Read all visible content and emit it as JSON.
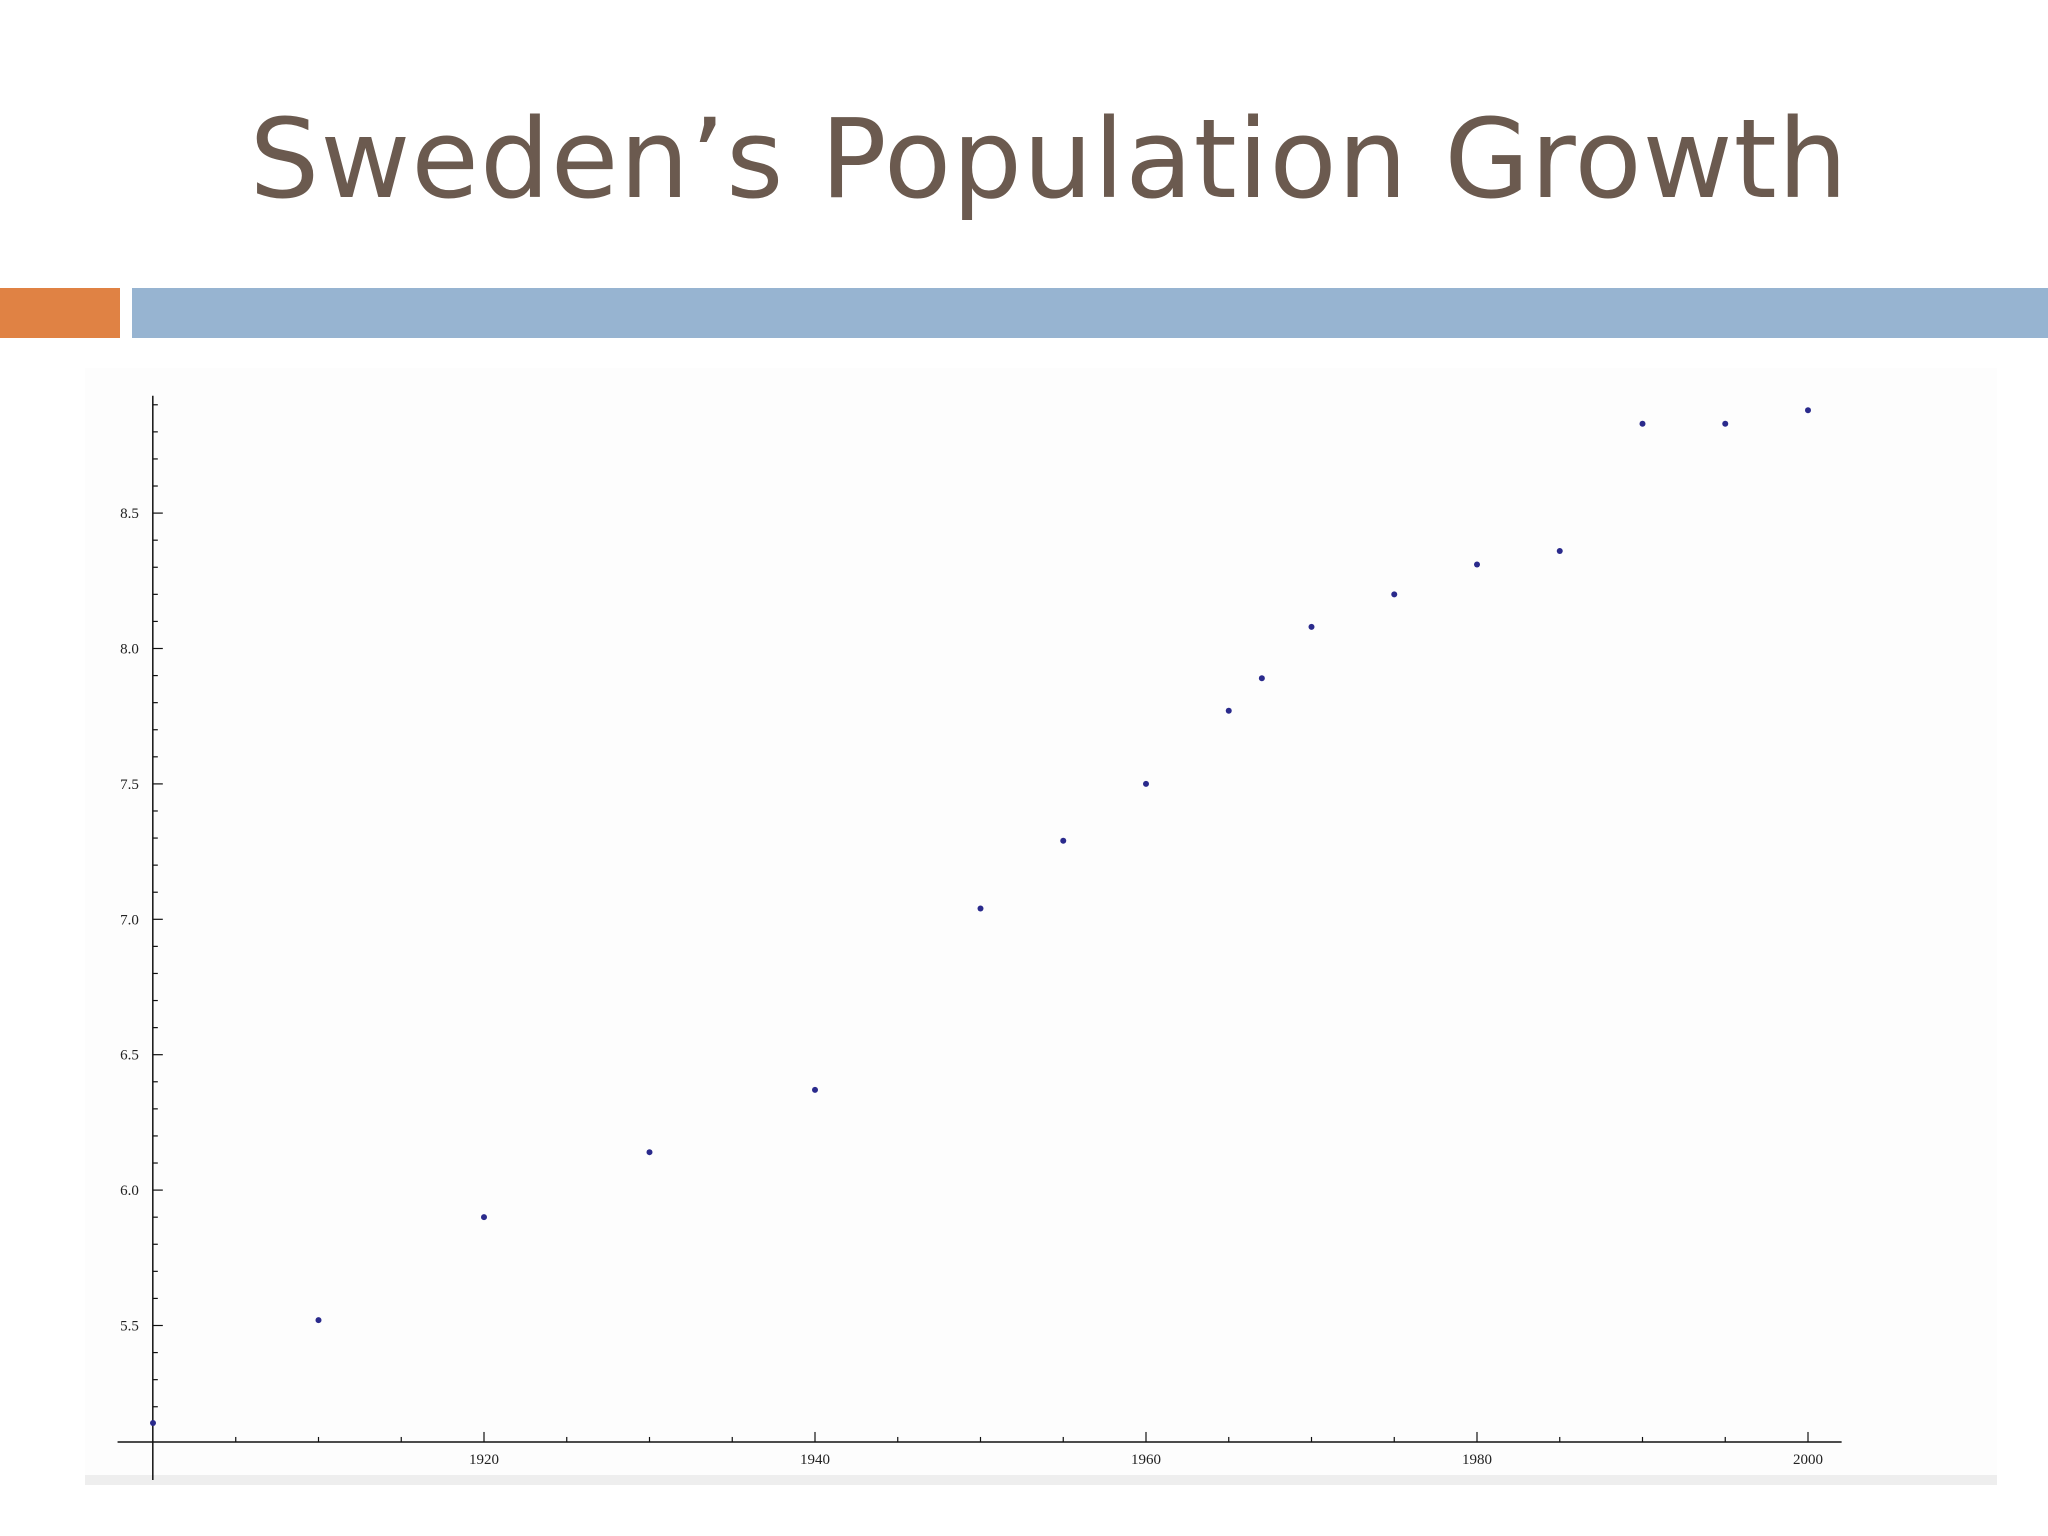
{
  "slide": {
    "title": "Sweden’s Population Growth"
  },
  "colors": {
    "title": "#6b5a4f",
    "accent_orange": "#e08244",
    "accent_blue": "#97b4d1",
    "axis": "#111111",
    "point": "#2a2a8c"
  },
  "chart_data": {
    "type": "scatter",
    "title": "",
    "xlabel": "",
    "ylabel": "",
    "xlim": [
      1900,
      2002
    ],
    "ylim": [
      5.12,
      8.93
    ],
    "x_ticks": [
      1920,
      1940,
      1960,
      1980,
      2000
    ],
    "x_tick_labels": [
      "1920",
      "1940",
      "1960",
      "1980",
      "2000"
    ],
    "y_ticks": [
      5.5,
      6.0,
      6.5,
      7.0,
      7.5,
      8.0,
      8.5
    ],
    "y_tick_labels": [
      "5.5",
      "6.0",
      "6.5",
      "7.0",
      "7.5",
      "8.0",
      "8.5"
    ],
    "grid": false,
    "series": [
      {
        "x": [
          1900,
          1910,
          1920,
          1930,
          1940,
          1950,
          1955,
          1960,
          1965,
          1967,
          1970,
          1975,
          1980,
          1985,
          1990,
          1995,
          2000
        ],
        "y": [
          5.14,
          5.52,
          5.9,
          6.14,
          6.37,
          7.04,
          7.29,
          7.5,
          7.77,
          7.89,
          8.08,
          8.2,
          8.31,
          8.36,
          8.83,
          8.83,
          8.88
        ]
      }
    ]
  }
}
